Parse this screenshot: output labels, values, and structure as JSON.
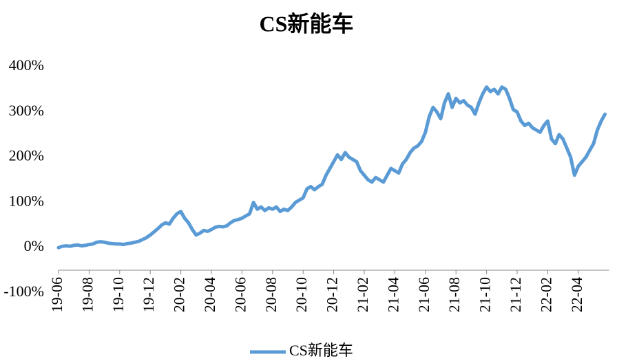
{
  "chart_data": {
    "type": "line",
    "title": "CS新能车",
    "categories": [
      "19-06",
      null,
      null,
      null,
      null,
      null,
      null,
      null,
      "19-08",
      null,
      null,
      null,
      null,
      null,
      null,
      null,
      "19-10",
      null,
      null,
      null,
      null,
      null,
      null,
      null,
      "19-12",
      null,
      null,
      null,
      null,
      null,
      null,
      null,
      "20-02",
      null,
      null,
      null,
      null,
      null,
      null,
      null,
      "20-04",
      null,
      null,
      null,
      null,
      null,
      null,
      null,
      "20-06",
      null,
      null,
      null,
      null,
      null,
      null,
      null,
      "20-08",
      null,
      null,
      null,
      null,
      null,
      null,
      null,
      "20-10",
      null,
      null,
      null,
      null,
      null,
      null,
      null,
      "20-12",
      null,
      null,
      null,
      null,
      null,
      null,
      null,
      "21-02",
      null,
      null,
      null,
      null,
      null,
      null,
      null,
      "21-04",
      null,
      null,
      null,
      null,
      null,
      null,
      null,
      "21-06",
      null,
      null,
      null,
      null,
      null,
      null,
      null,
      "21-08",
      null,
      null,
      null,
      null,
      null,
      null,
      null,
      "21-10",
      null,
      null,
      null,
      null,
      null,
      null,
      null,
      "21-12",
      null,
      null,
      null,
      null,
      null,
      null,
      null,
      "22-02",
      null,
      null,
      null,
      null,
      null,
      null,
      null,
      "22-04",
      null,
      null,
      null,
      null,
      null,
      null,
      null
    ],
    "series": [
      {
        "name": "CS新能车",
        "color": "#5b9bd5",
        "values": [
          0,
          3,
          4,
          3,
          5,
          6,
          4,
          5,
          7,
          8,
          12,
          13,
          12,
          10,
          9,
          8,
          8,
          7,
          9,
          10,
          12,
          14,
          18,
          22,
          28,
          35,
          42,
          50,
          55,
          52,
          65,
          75,
          80,
          65,
          55,
          40,
          28,
          32,
          38,
          36,
          40,
          45,
          47,
          46,
          48,
          55,
          60,
          62,
          65,
          70,
          75,
          100,
          85,
          90,
          82,
          88,
          85,
          90,
          80,
          85,
          82,
          90,
          100,
          105,
          110,
          130,
          135,
          128,
          135,
          140,
          160,
          175,
          190,
          205,
          195,
          210,
          200,
          195,
          190,
          170,
          160,
          150,
          145,
          155,
          150,
          145,
          160,
          175,
          170,
          165,
          185,
          195,
          210,
          220,
          225,
          235,
          255,
          290,
          310,
          300,
          285,
          320,
          340,
          310,
          330,
          320,
          325,
          315,
          310,
          295,
          320,
          340,
          355,
          345,
          350,
          340,
          355,
          350,
          330,
          305,
          300,
          280,
          270,
          275,
          265,
          260,
          255,
          270,
          280,
          240,
          230,
          250,
          240,
          220,
          200,
          160,
          180,
          190,
          200,
          215,
          230,
          260,
          280,
          295
        ]
      }
    ],
    "ylim": [
      -100,
      400
    ],
    "yticks": [
      {
        "value": -100,
        "label": "-100%"
      },
      {
        "value": 0,
        "label": "0%"
      },
      {
        "value": 100,
        "label": "100%"
      },
      {
        "value": 200,
        "label": "200%"
      },
      {
        "value": 300,
        "label": "300%"
      },
      {
        "value": 400,
        "label": "400%"
      }
    ],
    "grid": false,
    "legend": "bottom"
  }
}
